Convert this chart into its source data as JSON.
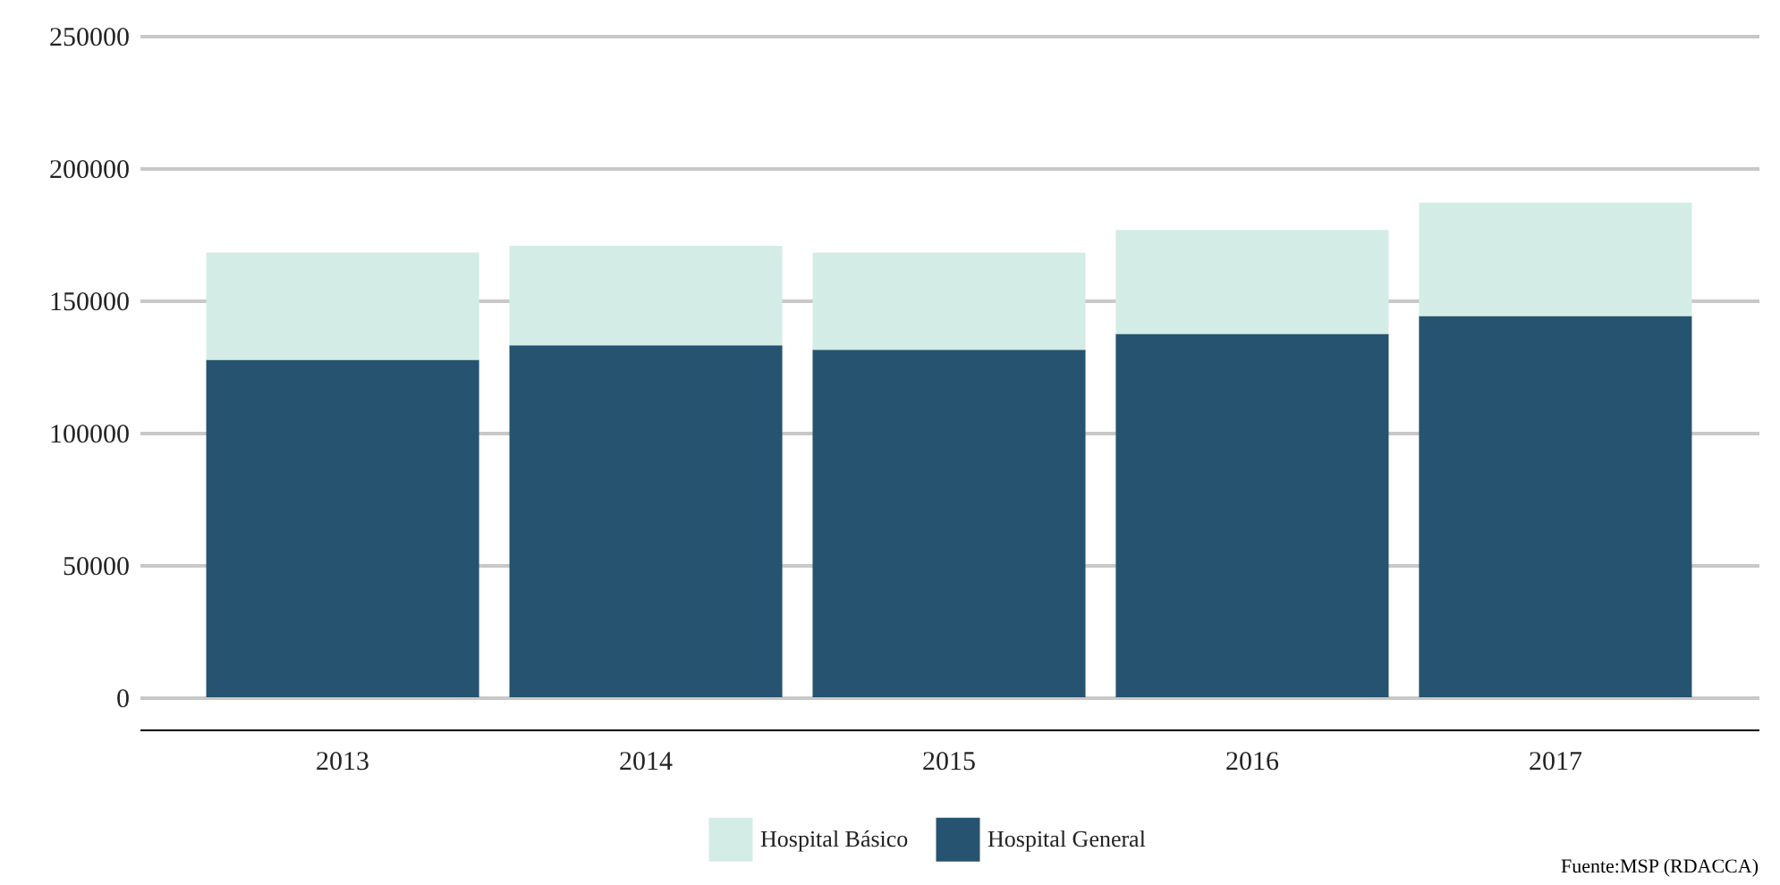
{
  "chart_data": {
    "type": "bar",
    "stacked": true,
    "categories": [
      "2013",
      "2014",
      "2015",
      "2016",
      "2017"
    ],
    "series": [
      {
        "name": "Hospital General",
        "color": "#26536f",
        "values": [
          127500,
          133000,
          131300,
          137300,
          144100
        ]
      },
      {
        "name": "Hospital Básico",
        "color": "#d3ede6",
        "values": [
          40600,
          37600,
          36800,
          39300,
          42800
        ]
      }
    ],
    "ylim": [
      0,
      250000
    ],
    "yticks": [
      0,
      50000,
      100000,
      150000,
      200000,
      250000
    ],
    "grid": "y",
    "legend": "bottom",
    "annotations": [
      "Fuente:MSP (RDACCA)"
    ]
  }
}
